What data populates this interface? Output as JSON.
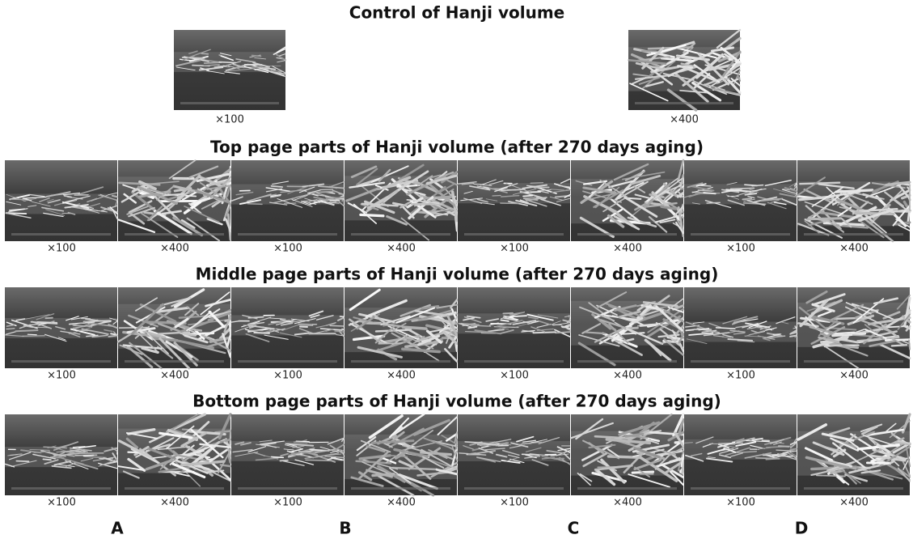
{
  "control": {
    "title": "Control of Hanji volume",
    "captions": [
      "×100",
      "×400"
    ]
  },
  "sections": [
    {
      "title": "Top page parts of Hanji volume (after 270 days aging)",
      "captions": [
        "×100",
        "×400",
        "×100",
        "×400",
        "×100",
        "×400",
        "×100",
        "×400"
      ]
    },
    {
      "title": "Middle page parts of Hanji volume (after 270 days aging)",
      "captions": [
        "×100",
        "×400",
        "×100",
        "×400",
        "×100",
        "×400",
        "×100",
        "×400"
      ]
    },
    {
      "title": "Bottom page parts of Hanji volume (after 270 days aging)",
      "captions": [
        "×100",
        "×400",
        "×100",
        "×400",
        "×100",
        "×400",
        "×100",
        "×400"
      ]
    }
  ],
  "groups": [
    "A",
    "B",
    "C",
    "D"
  ]
}
